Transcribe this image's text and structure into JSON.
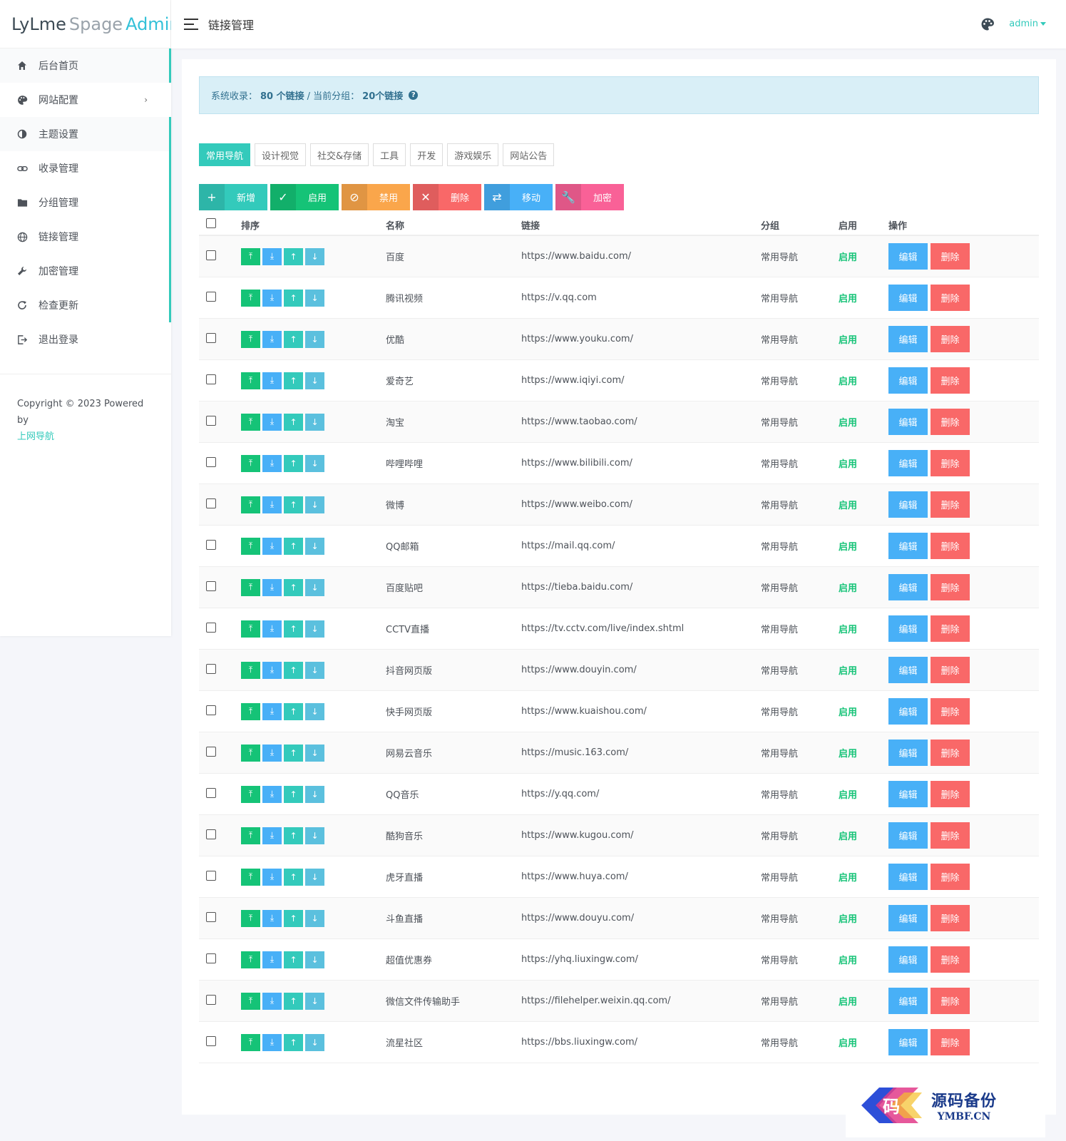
{
  "logo": {
    "part1": "LyLme",
    "part2": "Spage",
    "part3": "Admin"
  },
  "sidebar": {
    "items": [
      {
        "label": "后台首页",
        "icon": "home-icon"
      },
      {
        "label": "网站配置",
        "icon": "palette-icon",
        "chevron": "›"
      },
      {
        "label": "主题设置",
        "icon": "contrast-icon"
      },
      {
        "label": "收录管理",
        "icon": "link-icon"
      },
      {
        "label": "分组管理",
        "icon": "folder-icon"
      },
      {
        "label": "链接管理",
        "icon": "globe-icon"
      },
      {
        "label": "加密管理",
        "icon": "wrench-icon"
      },
      {
        "label": "检查更新",
        "icon": "refresh-icon"
      },
      {
        "label": "退出登录",
        "icon": "logout-icon"
      }
    ],
    "copyright": "Copyright © 2023 Powered by",
    "copyright_link": "上网导航"
  },
  "header": {
    "title": "链接管理",
    "user": "admin"
  },
  "alert": {
    "prefix": "系统收录：",
    "total": "80 个链接",
    "sep": "/ 当前分组：",
    "group_count": "20个链接"
  },
  "tabs": [
    "常用导航",
    "设计视觉",
    "社交&存储",
    "工具",
    "开发",
    "游戏娱乐",
    "网站公告"
  ],
  "actions": [
    {
      "label": "新增",
      "icon": "+",
      "cls": "add"
    },
    {
      "label": "启用",
      "icon": "✓",
      "cls": "on"
    },
    {
      "label": "禁用",
      "icon": "⊘",
      "cls": "off"
    },
    {
      "label": "删除",
      "icon": "✕",
      "cls": "del"
    },
    {
      "label": "移动",
      "icon": "⇄",
      "cls": "move"
    },
    {
      "label": "加密",
      "icon": "🔧",
      "cls": "enc"
    }
  ],
  "table": {
    "headers": {
      "sort": "排序",
      "name": "名称",
      "url": "链接",
      "group": "分组",
      "enabled": "启用",
      "ops": "操作"
    },
    "edit_label": "编辑",
    "delete_label": "删除",
    "rows": [
      {
        "name": "百度",
        "url": "https://www.baidu.com/",
        "group": "常用导航",
        "status": "启用"
      },
      {
        "name": "腾讯视频",
        "url": "https://v.qq.com",
        "group": "常用导航",
        "status": "启用"
      },
      {
        "name": "优酷",
        "url": "https://www.youku.com/",
        "group": "常用导航",
        "status": "启用"
      },
      {
        "name": "爱奇艺",
        "url": "https://www.iqiyi.com/",
        "group": "常用导航",
        "status": "启用"
      },
      {
        "name": "淘宝",
        "url": "https://www.taobao.com/",
        "group": "常用导航",
        "status": "启用"
      },
      {
        "name": "哔哩哔哩",
        "url": "https://www.bilibili.com/",
        "group": "常用导航",
        "status": "启用"
      },
      {
        "name": "微博",
        "url": "https://www.weibo.com/",
        "group": "常用导航",
        "status": "启用"
      },
      {
        "name": "QQ邮箱",
        "url": "https://mail.qq.com/",
        "group": "常用导航",
        "status": "启用"
      },
      {
        "name": "百度贴吧",
        "url": "https://tieba.baidu.com/",
        "group": "常用导航",
        "status": "启用"
      },
      {
        "name": "CCTV直播",
        "url": "https://tv.cctv.com/live/index.shtml",
        "group": "常用导航",
        "status": "启用"
      },
      {
        "name": "抖音网页版",
        "url": "https://www.douyin.com/",
        "group": "常用导航",
        "status": "启用"
      },
      {
        "name": "快手网页版",
        "url": "https://www.kuaishou.com/",
        "group": "常用导航",
        "status": "启用"
      },
      {
        "name": "网易云音乐",
        "url": "https://music.163.com/",
        "group": "常用导航",
        "status": "启用"
      },
      {
        "name": "QQ音乐",
        "url": "https://y.qq.com/",
        "group": "常用导航",
        "status": "启用"
      },
      {
        "name": "酷狗音乐",
        "url": "https://www.kugou.com/",
        "group": "常用导航",
        "status": "启用"
      },
      {
        "name": "虎牙直播",
        "url": "https://www.huya.com/",
        "group": "常用导航",
        "status": "启用"
      },
      {
        "name": "斗鱼直播",
        "url": "https://www.douyu.com/",
        "group": "常用导航",
        "status": "启用"
      },
      {
        "name": "超值优惠券",
        "url": "https://yhq.liuxingw.com/",
        "group": "常用导航",
        "status": "启用"
      },
      {
        "name": "微信文件传输助手",
        "url": "https://filehelper.weixin.qq.com/",
        "group": "常用导航",
        "status": "启用"
      },
      {
        "name": "流星社区",
        "url": "https://bbs.liuxingw.com/",
        "group": "常用导航",
        "status": "启用"
      }
    ]
  },
  "sort_icons": [
    "⤒",
    "⤓",
    "↑",
    "↓"
  ],
  "watermark": {
    "cn": "源码备份",
    "en": "YMBF.CN",
    "logo_char": "码"
  }
}
